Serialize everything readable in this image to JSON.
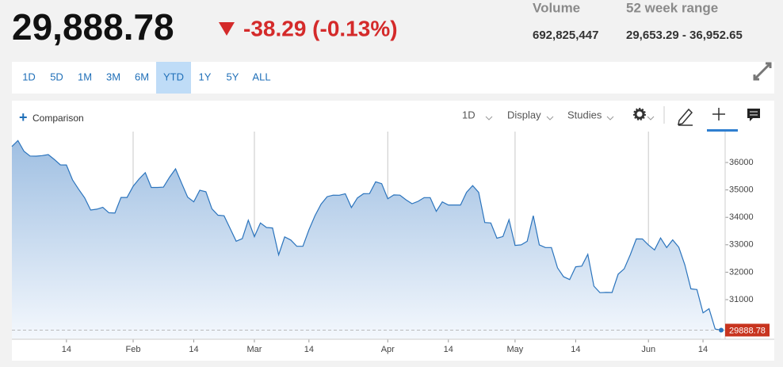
{
  "header": {
    "price": "29,888.78",
    "change": "-38.29 (-0.13%)",
    "stats": [
      {
        "label": "Volume",
        "value": "692,825,447"
      },
      {
        "label": "52 week range",
        "value": "29,653.29 - 36,952.65"
      }
    ]
  },
  "toolbar": {
    "ranges": [
      "1D",
      "5D",
      "1M",
      "3M",
      "6M",
      "YTD",
      "1Y",
      "5Y",
      "ALL"
    ],
    "selected": 5,
    "comparison": "Comparison",
    "interval": "1D",
    "display": "Display",
    "studies": "Studies"
  },
  "chart_data": {
    "type": "area",
    "color": "#2b74bd",
    "x": [
      0,
      1,
      2,
      3,
      4,
      5,
      6,
      7,
      8,
      9,
      10,
      11,
      12,
      13,
      14,
      15,
      16,
      17,
      18,
      19,
      20,
      21,
      22,
      23,
      24,
      25,
      26,
      27,
      28,
      29,
      30,
      31,
      32,
      33,
      34,
      35,
      36,
      37,
      38,
      39,
      40,
      41,
      42,
      43,
      44,
      45,
      46,
      47,
      48,
      49,
      50,
      51,
      52,
      53,
      54,
      55,
      56,
      57,
      58,
      59,
      60,
      61,
      62,
      63,
      64,
      65,
      66,
      67,
      68,
      69,
      70,
      71,
      72,
      73,
      74,
      75,
      76,
      77,
      78,
      79,
      80,
      81,
      82,
      83,
      84,
      85,
      86,
      87,
      88,
      89,
      90,
      91,
      92,
      93,
      94,
      95,
      96,
      97,
      98,
      99,
      100,
      101,
      102,
      103,
      104,
      105,
      106,
      107,
      108,
      109,
      110,
      111,
      112,
      113,
      114,
      115,
      116,
      117
    ],
    "series": [
      {
        "values": [
          36585,
          36800,
          36407,
          36236,
          36232,
          36252,
          36290,
          36113,
          35912,
          35911,
          35368,
          35029,
          34715,
          34265,
          34297,
          34365,
          34168,
          34160,
          34725,
          34725,
          35132,
          35405,
          35630,
          35090,
          35090,
          35100,
          35462,
          35768,
          35242,
          34738,
          34566,
          34988,
          34934,
          34312,
          34079,
          34058,
          33596,
          33131,
          33223,
          33895,
          33294,
          33795,
          33630,
          33614,
          32632,
          33286,
          33174,
          32945,
          32945,
          33544,
          34063,
          34481,
          34754,
          34808,
          34807,
          34861,
          34359,
          34707,
          34861,
          34868,
          35295,
          35228,
          34678,
          34818,
          34808,
          34642,
          34496,
          34583,
          34721,
          34720,
          34221,
          34564,
          34451,
          34451,
          34452,
          34912,
          35160,
          34911,
          33811,
          33794,
          33240,
          33301,
          33916,
          32977,
          32998,
          33128,
          34061,
          32997,
          32899,
          32899,
          32160,
          31834,
          31730,
          32197,
          32223,
          32654,
          31490,
          31253,
          31262,
          31261,
          31928,
          32120,
          32637,
          33213,
          33212,
          32990,
          32813,
          33248,
          32899,
          33180,
          32910,
          32273,
          31392,
          31367,
          30516,
          30668,
          29927,
          29888.78
        ]
      }
    ],
    "last_label": "29888.78",
    "xlim": [
      0,
      117
    ],
    "ylim": [
      29555,
      37127
    ],
    "xticks": [
      {
        "value": 9,
        "label": "14"
      },
      {
        "value": 20,
        "label": "Feb"
      },
      {
        "value": 30,
        "label": "14"
      },
      {
        "value": 40,
        "label": "Mar"
      },
      {
        "value": 49,
        "label": "14"
      },
      {
        "value": 62,
        "label": "Apr"
      },
      {
        "value": 72,
        "label": "14"
      },
      {
        "value": 83,
        "label": "May"
      },
      {
        "value": 93,
        "label": "14"
      },
      {
        "value": 105,
        "label": "Jun"
      },
      {
        "value": 114,
        "label": "14"
      }
    ],
    "xgrid_ticks": [
      1,
      3,
      5,
      7,
      9
    ],
    "yticks": [
      31000,
      32000,
      33000,
      34000,
      35000,
      36000
    ]
  }
}
